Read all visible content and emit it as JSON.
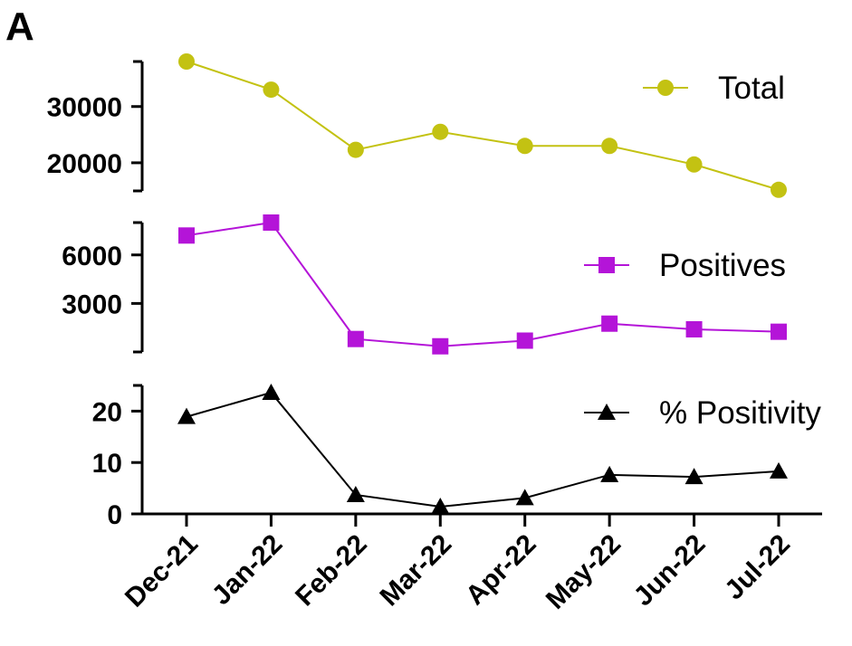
{
  "panel_label": "A",
  "chart_data": {
    "type": "line",
    "categories": [
      "Dec-21",
      "Jan-22",
      "Feb-22",
      "Mar-22",
      "Apr-22",
      "May-22",
      "Jun-22",
      "Jul-22"
    ],
    "grid": false,
    "series": [
      {
        "name": "Total",
        "marker": "circle",
        "color": "#c3c212",
        "values": [
          38000,
          33000,
          22300,
          25500,
          23000,
          23000,
          19700,
          15200
        ],
        "ylim": [
          15000,
          38000
        ],
        "yticks": [
          20000,
          30000
        ],
        "ytick_labels": [
          "20000",
          "30000"
        ],
        "legend_position": "top-right"
      },
      {
        "name": "Positives",
        "marker": "square",
        "color": "#b414d8",
        "values": [
          7200,
          8000,
          800,
          350,
          700,
          1750,
          1400,
          1250
        ],
        "ylim": [
          0,
          8000
        ],
        "yticks": [
          3000,
          6000
        ],
        "ytick_labels": [
          "3000",
          "6000"
        ],
        "legend_position": "top-right"
      },
      {
        "name": "% Positivity",
        "marker": "triangle",
        "color": "#000000",
        "values": [
          18.9,
          23.6,
          3.7,
          1.4,
          3.1,
          7.6,
          7.2,
          8.3
        ],
        "ylim": [
          0,
          25
        ],
        "yticks": [
          0,
          10,
          20
        ],
        "ytick_labels": [
          "0",
          "10",
          "20"
        ],
        "legend_position": "top-right"
      }
    ]
  }
}
